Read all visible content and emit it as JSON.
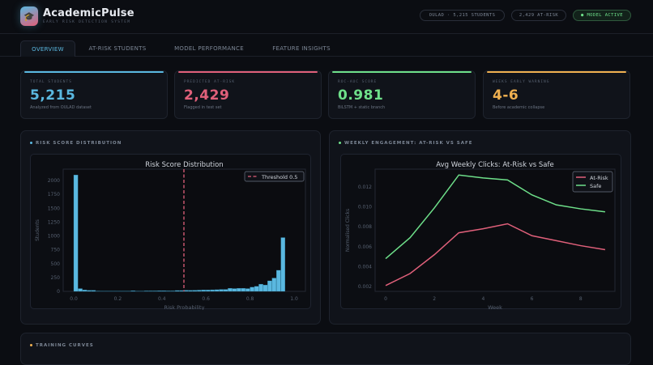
{
  "header": {
    "title": "AcademicPulse",
    "subtitle": "EARLY RISK DETECTION SYSTEM",
    "logo_icon": "graduation-cap-icon",
    "badges": [
      "OULAD · 5,215 STUDENTS",
      "2,429 AT-RISK",
      "● MODEL ACTIVE"
    ]
  },
  "tabs": [
    {
      "label": "OVERVIEW",
      "active": true
    },
    {
      "label": "AT-RISK STUDENTS"
    },
    {
      "label": "MODEL PERFORMANCE"
    },
    {
      "label": "FEATURE INSIGHTS"
    }
  ],
  "stats": [
    {
      "label": "TOTAL STUDENTS",
      "value": "5,215",
      "sub": "Analyzed from OULAD dataset",
      "color": "#5ab8e0"
    },
    {
      "label": "PREDICTED AT-RISK",
      "value": "2,429",
      "sub": "Flagged in test set",
      "color": "#e0607a"
    },
    {
      "label": "ROC-AUC SCORE",
      "value": "0.981",
      "sub": "BiLSTM + static branch",
      "color": "#6ee08a"
    },
    {
      "label": "WEEKS EARLY WARNING",
      "value": "4-6",
      "sub": "Before academic collapse",
      "color": "#f0b050"
    }
  ],
  "panels": {
    "risk": "RISK SCORE DISTRIBUTION",
    "engagement": "WEEKLY ENGAGEMENT: AT-RISK VS SAFE",
    "training": "TRAINING CURVES"
  },
  "chart_data": [
    {
      "type": "bar",
      "title": "Risk Score Distribution",
      "xlabel": "Risk Probability",
      "ylabel": "Students",
      "xlim": [
        0,
        1
      ],
      "ylim": [
        0,
        2200
      ],
      "bin_width": 0.02,
      "xticks": [
        "0.0",
        "0.2",
        "0.4",
        "0.6",
        "0.8",
        "1.0"
      ],
      "yticks": [
        "0",
        "250",
        "500",
        "750",
        "1000",
        "1250",
        "1500",
        "1750",
        "2000"
      ],
      "values": [
        2100,
        50,
        25,
        18,
        18,
        6,
        5,
        5,
        5,
        5,
        5,
        5,
        5,
        10,
        5,
        5,
        8,
        8,
        8,
        10,
        10,
        8,
        8,
        15,
        15,
        20,
        18,
        20,
        22,
        25,
        25,
        28,
        30,
        35,
        35,
        55,
        50,
        55,
        55,
        50,
        75,
        90,
        130,
        115,
        190,
        240,
        380,
        970,
        0,
        0
      ],
      "threshold": {
        "x": 0.5,
        "label": "Threshold 0.5",
        "color": "#e0607a"
      },
      "bar_color": "#5ab8e0"
    },
    {
      "type": "line",
      "title": "Avg Weekly Clicks: At-Risk vs Safe",
      "xlabel": "Week",
      "ylabel": "Normalised Clicks",
      "x": [
        0,
        1,
        2,
        3,
        4,
        5,
        6,
        7,
        8,
        9
      ],
      "xticks": [
        "0",
        "2",
        "4",
        "6",
        "8"
      ],
      "yticks": [
        "0.002",
        "0.004",
        "0.006",
        "0.008",
        "0.010",
        "0.012"
      ],
      "series": [
        {
          "name": "At-Risk",
          "color": "#e0607a",
          "values": [
            0.0021,
            0.0033,
            0.0052,
            0.0074,
            0.0078,
            0.0083,
            0.0071,
            0.0066,
            0.0061,
            0.0057
          ]
        },
        {
          "name": "Safe",
          "color": "#6ee08a",
          "values": [
            0.0048,
            0.0069,
            0.0099,
            0.0132,
            0.0129,
            0.0127,
            0.0112,
            0.0102,
            0.0098,
            0.0095
          ]
        }
      ],
      "legend": "top-right"
    }
  ]
}
